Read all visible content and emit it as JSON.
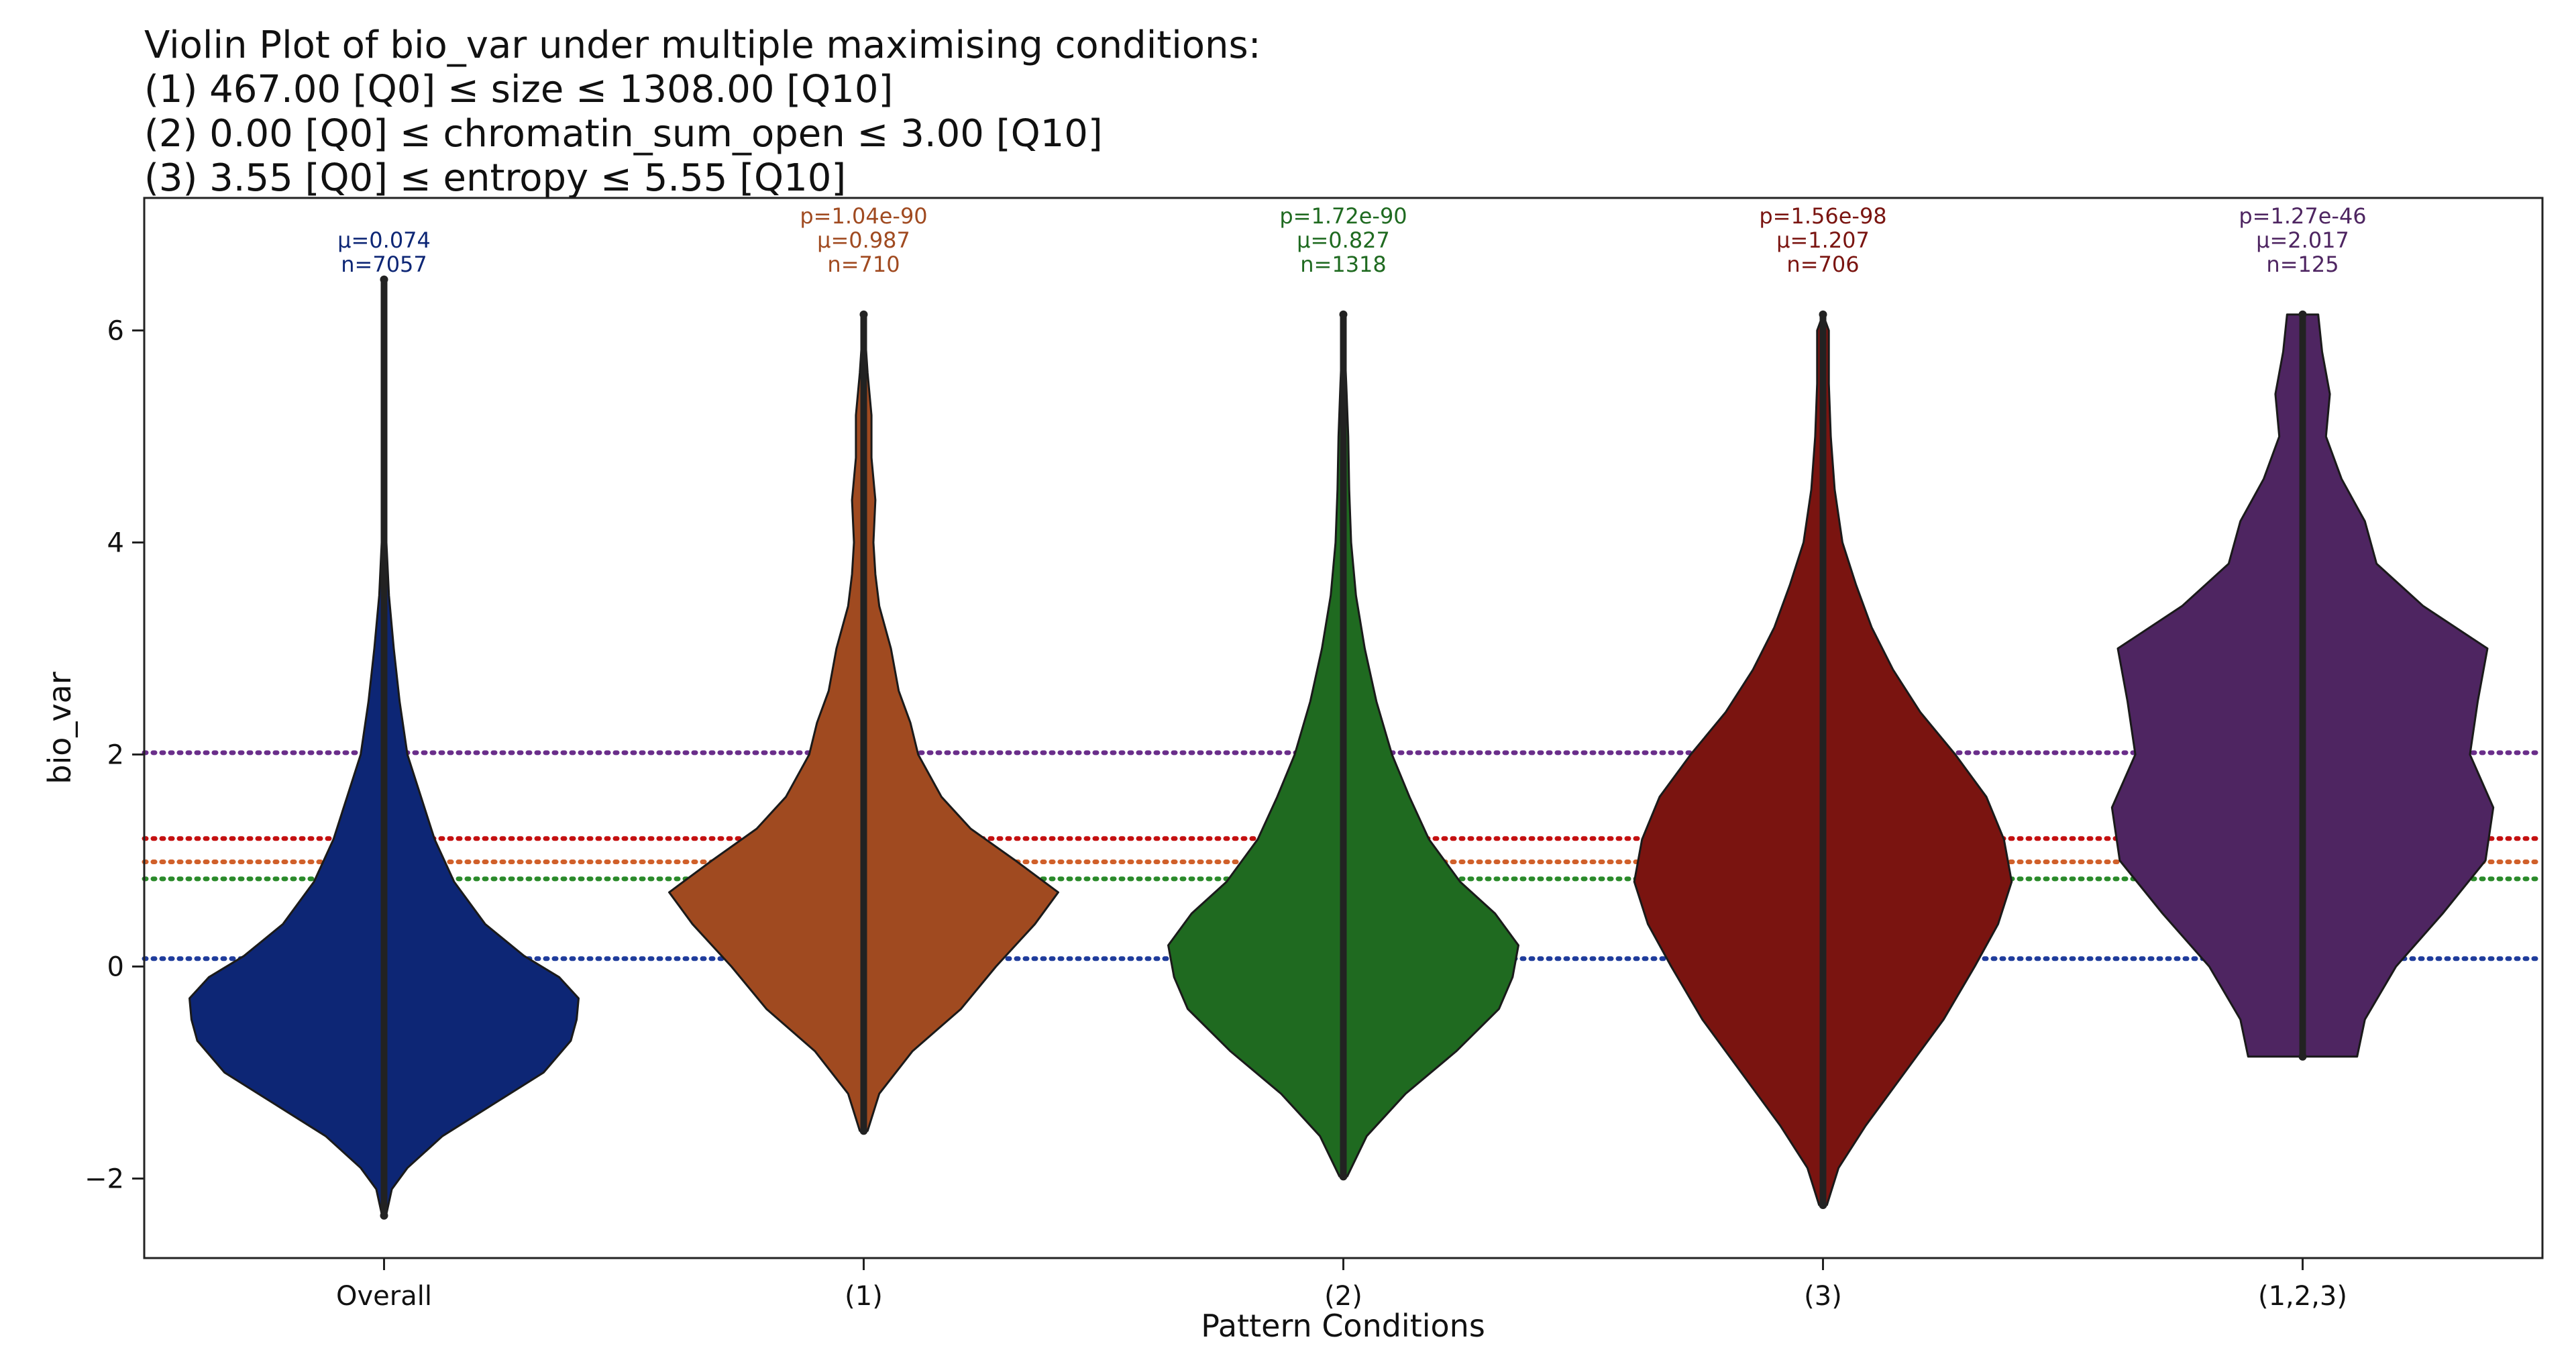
{
  "chart_data": {
    "type": "violin",
    "title_lines": [
      "Violin Plot of bio_var under multiple maximising conditions:",
      "(1) 467.00 [Q0] ≤ size ≤ 1308.00 [Q10]",
      "(2) 0.00 [Q0] ≤ chromatin_sum_open ≤ 3.00 [Q10]",
      "(3) 3.55 [Q0] ≤ entropy ≤ 5.55 [Q10]"
    ],
    "xlabel": "Pattern Conditions",
    "ylabel": "bio_var",
    "ylim": [
      -2.75,
      7.25
    ],
    "yticks": [
      -2,
      0,
      2,
      4,
      6
    ],
    "ytick_labels": [
      "−2",
      "0",
      "2",
      "4",
      "6"
    ],
    "grid": false,
    "categories": [
      "Overall",
      "(1)",
      "(2)",
      "(3)",
      "(1,2,3)"
    ],
    "series": [
      {
        "category": "Overall",
        "color": "#0d2675",
        "annotations": [
          "μ=0.074",
          "n=7057"
        ],
        "mean": 0.074,
        "n": 7057,
        "min": -2.35,
        "max": 6.48,
        "profile": [
          [
            -2.35,
            0.01
          ],
          [
            -2.1,
            0.04
          ],
          [
            -1.9,
            0.12
          ],
          [
            -1.6,
            0.3
          ],
          [
            -1.3,
            0.56
          ],
          [
            -1.0,
            0.82
          ],
          [
            -0.7,
            0.96
          ],
          [
            -0.5,
            0.99
          ],
          [
            -0.3,
            1.0
          ],
          [
            -0.1,
            0.9
          ],
          [
            0.1,
            0.72
          ],
          [
            0.4,
            0.52
          ],
          [
            0.8,
            0.36
          ],
          [
            1.2,
            0.26
          ],
          [
            1.6,
            0.19
          ],
          [
            2.0,
            0.12
          ],
          [
            2.5,
            0.08
          ],
          [
            3.0,
            0.05
          ],
          [
            3.5,
            0.025
          ],
          [
            4.0,
            0.012
          ],
          [
            5.0,
            0.005
          ],
          [
            6.48,
            0.0
          ]
        ]
      },
      {
        "category": "(1)",
        "color": "#a04a20",
        "annotations": [
          "p=1.04e-90",
          "μ=0.987",
          "n=710"
        ],
        "pvalue": "1.04e-90",
        "mean": 0.987,
        "n": 710,
        "min": -1.55,
        "max": 6.15,
        "profile": [
          [
            -1.55,
            0.02
          ],
          [
            -1.2,
            0.08
          ],
          [
            -0.8,
            0.25
          ],
          [
            -0.4,
            0.5
          ],
          [
            0.0,
            0.68
          ],
          [
            0.4,
            0.88
          ],
          [
            0.7,
            1.0
          ],
          [
            1.0,
            0.78
          ],
          [
            1.3,
            0.55
          ],
          [
            1.6,
            0.4
          ],
          [
            2.0,
            0.28
          ],
          [
            2.3,
            0.24
          ],
          [
            2.6,
            0.18
          ],
          [
            3.0,
            0.14
          ],
          [
            3.4,
            0.08
          ],
          [
            3.7,
            0.06
          ],
          [
            4.0,
            0.05
          ],
          [
            4.4,
            0.06
          ],
          [
            4.8,
            0.04
          ],
          [
            5.2,
            0.04
          ],
          [
            5.6,
            0.02
          ],
          [
            6.15,
            0.0
          ]
        ]
      },
      {
        "category": "(2)",
        "color": "#1f6a20",
        "annotations": [
          "p=1.72e-90",
          "μ=0.827",
          "n=1318"
        ],
        "pvalue": "1.72e-90",
        "mean": 0.827,
        "n": 1318,
        "min": -1.98,
        "max": 6.15,
        "profile": [
          [
            -1.98,
            0.02
          ],
          [
            -1.6,
            0.12
          ],
          [
            -1.2,
            0.32
          ],
          [
            -0.8,
            0.58
          ],
          [
            -0.4,
            0.8
          ],
          [
            -0.1,
            0.87
          ],
          [
            0.2,
            0.9
          ],
          [
            0.5,
            0.78
          ],
          [
            0.8,
            0.6
          ],
          [
            1.2,
            0.44
          ],
          [
            1.6,
            0.34
          ],
          [
            2.0,
            0.25
          ],
          [
            2.5,
            0.17
          ],
          [
            3.0,
            0.11
          ],
          [
            3.5,
            0.065
          ],
          [
            4.0,
            0.04
          ],
          [
            4.5,
            0.03
          ],
          [
            5.0,
            0.025
          ],
          [
            5.5,
            0.015
          ],
          [
            6.15,
            0.0
          ]
        ]
      },
      {
        "category": "(3)",
        "color": "#7a1410",
        "annotations": [
          "p=1.56e-98",
          "μ=1.207",
          "n=706"
        ],
        "pvalue": "1.56e-98",
        "mean": 1.207,
        "n": 706,
        "min": -2.25,
        "max": 6.15,
        "profile": [
          [
            -2.25,
            0.02
          ],
          [
            -1.9,
            0.08
          ],
          [
            -1.5,
            0.22
          ],
          [
            -1.0,
            0.42
          ],
          [
            -0.5,
            0.62
          ],
          [
            0.0,
            0.78
          ],
          [
            0.4,
            0.9
          ],
          [
            0.8,
            0.97
          ],
          [
            1.2,
            0.93
          ],
          [
            1.6,
            0.84
          ],
          [
            2.0,
            0.68
          ],
          [
            2.4,
            0.5
          ],
          [
            2.8,
            0.36
          ],
          [
            3.2,
            0.25
          ],
          [
            3.6,
            0.17
          ],
          [
            4.0,
            0.1
          ],
          [
            4.5,
            0.06
          ],
          [
            5.0,
            0.04
          ],
          [
            5.5,
            0.03
          ],
          [
            6.0,
            0.03
          ],
          [
            6.15,
            0.0
          ]
        ]
      },
      {
        "category": "(1,2,3)",
        "color": "#4e2561",
        "annotations": [
          "p=1.27e-46",
          "μ=2.017",
          "n=125"
        ],
        "pvalue": "1.27e-46",
        "mean": 2.017,
        "n": 125,
        "min": -0.85,
        "max": 6.15,
        "profile": [
          [
            -0.85,
            0.28
          ],
          [
            -0.5,
            0.32
          ],
          [
            0.0,
            0.48
          ],
          [
            0.5,
            0.72
          ],
          [
            1.0,
            0.94
          ],
          [
            1.5,
            0.98
          ],
          [
            2.0,
            0.86
          ],
          [
            2.5,
            0.9
          ],
          [
            3.0,
            0.95
          ],
          [
            3.4,
            0.62
          ],
          [
            3.8,
            0.38
          ],
          [
            4.2,
            0.32
          ],
          [
            4.6,
            0.2
          ],
          [
            5.0,
            0.12
          ],
          [
            5.4,
            0.14
          ],
          [
            5.8,
            0.1
          ],
          [
            6.15,
            0.08
          ]
        ]
      }
    ],
    "mean_lines": [
      {
        "value": 2.017,
        "color": "#6a2e8a"
      },
      {
        "value": 1.207,
        "color": "#c41010"
      },
      {
        "value": 0.987,
        "color": "#d0602a"
      },
      {
        "value": 0.827,
        "color": "#2a8a2a"
      },
      {
        "value": 0.074,
        "color": "#1f3c9c"
      }
    ]
  }
}
